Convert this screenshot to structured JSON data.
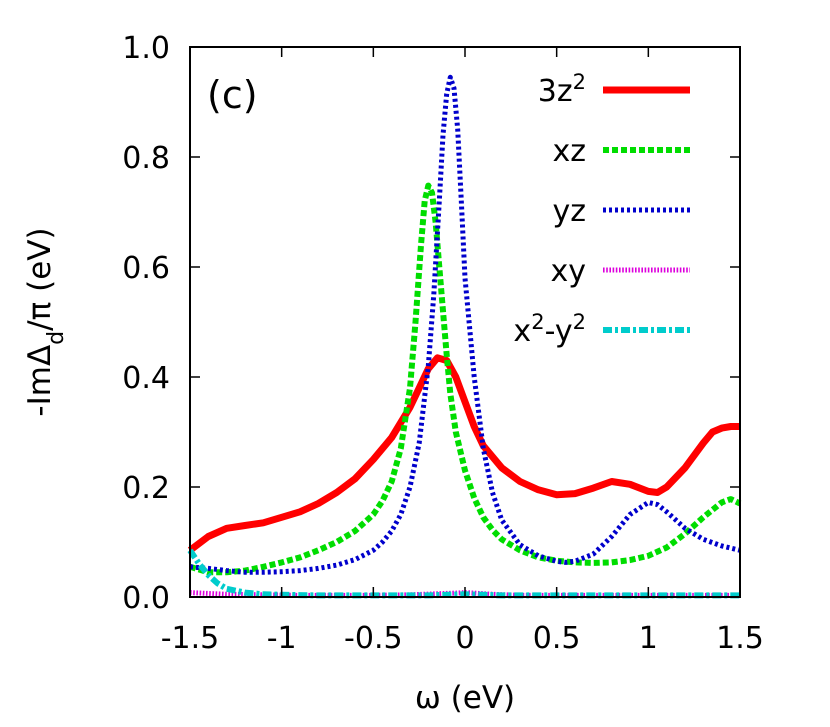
{
  "chart_data": {
    "type": "line",
    "panel_label": "(c)",
    "xlabel": "ω (eV)",
    "ylabel": "-ImΔ_d/π (eV)",
    "ylabel_parts": {
      "pre": "-ImΔ",
      "sub": "d",
      "post": "/π (eV)"
    },
    "xlim": [
      -1.5,
      1.5
    ],
    "ylim": [
      0.0,
      1.0
    ],
    "xticks": [
      -1.5,
      -1,
      -0.5,
      0,
      0.5,
      1,
      1.5
    ],
    "xtick_labels": [
      "-1.5",
      "-1",
      "-0.5",
      "0",
      "0.5",
      "1",
      "1.5"
    ],
    "yticks": [
      0.0,
      0.2,
      0.4,
      0.6,
      0.8,
      1.0
    ],
    "ytick_labels": [
      "0.0",
      "0.2",
      "0.4",
      "0.6",
      "0.8",
      "1.0"
    ],
    "grid": false,
    "legend_position": "top-right",
    "series": [
      {
        "name": "3z²",
        "name_parts": [
          {
            "t": "3z"
          },
          {
            "t": "2",
            "sup": true
          }
        ],
        "color": "#ff0000",
        "style": "solid",
        "x": [
          -1.5,
          -1.4,
          -1.3,
          -1.2,
          -1.1,
          -1.0,
          -0.9,
          -0.8,
          -0.7,
          -0.6,
          -0.5,
          -0.4,
          -0.3,
          -0.25,
          -0.2,
          -0.15,
          -0.1,
          -0.05,
          0.0,
          0.05,
          0.1,
          0.2,
          0.3,
          0.4,
          0.5,
          0.6,
          0.7,
          0.8,
          0.9,
          1.0,
          1.05,
          1.1,
          1.2,
          1.3,
          1.35,
          1.4,
          1.45,
          1.5
        ],
        "y": [
          0.085,
          0.11,
          0.125,
          0.13,
          0.135,
          0.145,
          0.155,
          0.17,
          0.19,
          0.215,
          0.25,
          0.29,
          0.345,
          0.38,
          0.415,
          0.435,
          0.43,
          0.4,
          0.355,
          0.31,
          0.275,
          0.235,
          0.21,
          0.195,
          0.186,
          0.188,
          0.198,
          0.21,
          0.205,
          0.192,
          0.19,
          0.2,
          0.235,
          0.28,
          0.3,
          0.307,
          0.31,
          0.31
        ]
      },
      {
        "name": "xz",
        "name_parts": [
          {
            "t": "xz"
          }
        ],
        "color": "#00dd00",
        "style": "dashed",
        "x": [
          -1.5,
          -1.4,
          -1.3,
          -1.2,
          -1.1,
          -1.0,
          -0.9,
          -0.8,
          -0.7,
          -0.6,
          -0.5,
          -0.45,
          -0.4,
          -0.35,
          -0.3,
          -0.27,
          -0.24,
          -0.22,
          -0.2,
          -0.18,
          -0.16,
          -0.14,
          -0.12,
          -0.1,
          -0.08,
          -0.05,
          0.0,
          0.05,
          0.1,
          0.15,
          0.2,
          0.3,
          0.4,
          0.5,
          0.6,
          0.7,
          0.8,
          0.9,
          1.0,
          1.1,
          1.2,
          1.3,
          1.4,
          1.45,
          1.5
        ],
        "y": [
          0.055,
          0.045,
          0.045,
          0.048,
          0.055,
          0.063,
          0.072,
          0.085,
          0.1,
          0.12,
          0.15,
          0.175,
          0.21,
          0.27,
          0.38,
          0.5,
          0.64,
          0.72,
          0.748,
          0.735,
          0.68,
          0.6,
          0.52,
          0.44,
          0.37,
          0.3,
          0.23,
          0.18,
          0.145,
          0.122,
          0.105,
          0.085,
          0.072,
          0.066,
          0.063,
          0.062,
          0.063,
          0.067,
          0.075,
          0.09,
          0.115,
          0.145,
          0.172,
          0.178,
          0.17
        ]
      },
      {
        "name": "yz",
        "name_parts": [
          {
            "t": "yz"
          }
        ],
        "color": "#0000cc",
        "style": "dotted",
        "x": [
          -1.5,
          -1.4,
          -1.3,
          -1.2,
          -1.1,
          -1.0,
          -0.9,
          -0.8,
          -0.7,
          -0.6,
          -0.5,
          -0.45,
          -0.4,
          -0.35,
          -0.3,
          -0.25,
          -0.2,
          -0.17,
          -0.14,
          -0.12,
          -0.1,
          -0.08,
          -0.06,
          -0.04,
          -0.02,
          0.0,
          0.05,
          0.1,
          0.15,
          0.2,
          0.3,
          0.4,
          0.5,
          0.55,
          0.6,
          0.7,
          0.8,
          0.9,
          1.0,
          1.05,
          1.1,
          1.2,
          1.3,
          1.4,
          1.5
        ],
        "y": [
          0.055,
          0.052,
          0.048,
          0.045,
          0.045,
          0.046,
          0.048,
          0.052,
          0.058,
          0.068,
          0.085,
          0.1,
          0.12,
          0.15,
          0.2,
          0.28,
          0.42,
          0.55,
          0.72,
          0.84,
          0.915,
          0.945,
          0.925,
          0.85,
          0.72,
          0.58,
          0.4,
          0.27,
          0.19,
          0.14,
          0.095,
          0.075,
          0.065,
          0.063,
          0.065,
          0.078,
          0.11,
          0.15,
          0.172,
          0.168,
          0.155,
          0.125,
          0.105,
          0.093,
          0.085
        ]
      },
      {
        "name": "xy",
        "name_parts": [
          {
            "t": "xy"
          }
        ],
        "color": "#dd00dd",
        "style": "dotted-fine",
        "x": [
          -1.5,
          -1.3,
          -1.1,
          -0.9,
          -0.7,
          -0.5,
          -0.3,
          -0.15,
          -0.05,
          0.0,
          0.05,
          0.15,
          0.3,
          0.5,
          0.7,
          0.9,
          1.1,
          1.3,
          1.5
        ],
        "y": [
          0.008,
          0.005,
          0.004,
          0.003,
          0.003,
          0.003,
          0.004,
          0.006,
          0.007,
          0.008,
          0.007,
          0.005,
          0.003,
          0.003,
          0.003,
          0.003,
          0.003,
          0.003,
          0.003
        ]
      },
      {
        "name": "x²-y²",
        "name_parts": [
          {
            "t": "x"
          },
          {
            "t": "2",
            "sup": true
          },
          {
            "t": "-y"
          },
          {
            "t": "2",
            "sup": true
          }
        ],
        "color": "#00cccc",
        "style": "dashdot",
        "x": [
          -1.5,
          -1.45,
          -1.4,
          -1.35,
          -1.3,
          -1.2,
          -1.1,
          -1.0,
          -0.8,
          -0.6,
          -0.4,
          -0.2,
          -0.1,
          0.0,
          0.1,
          0.2,
          0.4,
          0.6,
          0.8,
          1.0,
          1.2,
          1.4,
          1.5
        ],
        "y": [
          0.085,
          0.06,
          0.04,
          0.025,
          0.015,
          0.008,
          0.005,
          0.004,
          0.003,
          0.003,
          0.003,
          0.003,
          0.004,
          0.005,
          0.004,
          0.003,
          0.003,
          0.003,
          0.003,
          0.003,
          0.003,
          0.003,
          0.003
        ]
      }
    ]
  }
}
